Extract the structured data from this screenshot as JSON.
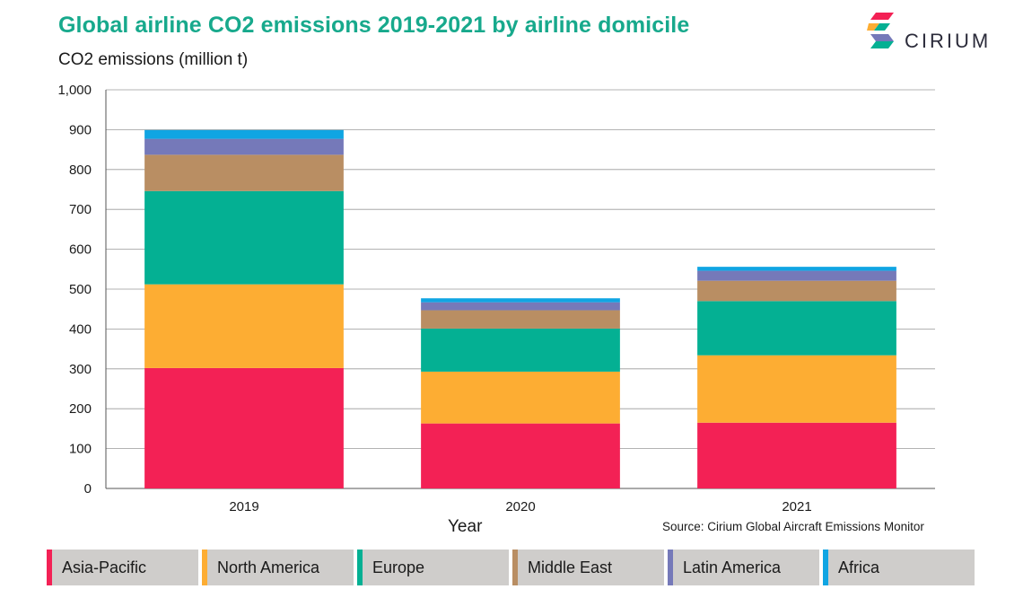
{
  "header": {
    "title": "Global airline CO2 emissions 2019-2021 by airline domicile",
    "logo_text": "CIRIUM"
  },
  "chart_data": {
    "type": "bar",
    "stacked": true,
    "title": "Global airline CO2 emissions 2019-2021 by airline domicile",
    "ylabel": "CO2 emissions (million t)",
    "xlabel": "Year",
    "ylim": [
      0,
      1000
    ],
    "yticks": [
      0,
      100,
      200,
      300,
      400,
      500,
      600,
      700,
      800,
      900,
      1000
    ],
    "ytick_labels": [
      "0",
      "100",
      "200",
      "300",
      "400",
      "500",
      "600",
      "700",
      "800",
      "900",
      "1,000"
    ],
    "categories": [
      "2019",
      "2020",
      "2021"
    ],
    "series": [
      {
        "name": "Asia-Pacific",
        "color": "#f32155",
        "values": [
          302,
          163,
          165
        ]
      },
      {
        "name": "North America",
        "color": "#fdad33",
        "values": [
          210,
          130,
          169
        ]
      },
      {
        "name": "Europe",
        "color": "#04b093",
        "values": [
          234,
          108,
          136
        ]
      },
      {
        "name": "Middle East",
        "color": "#b98e63",
        "values": [
          91,
          46,
          51
        ]
      },
      {
        "name": "Latin America",
        "color": "#7579b9",
        "values": [
          40,
          20,
          25
        ]
      },
      {
        "name": "Africa",
        "color": "#10a5e3",
        "values": [
          22,
          10,
          10
        ]
      }
    ],
    "grid": true,
    "legend_position": "bottom"
  },
  "footer": {
    "source": "Source: Cirium Global Aircraft Emissions Monitor"
  }
}
